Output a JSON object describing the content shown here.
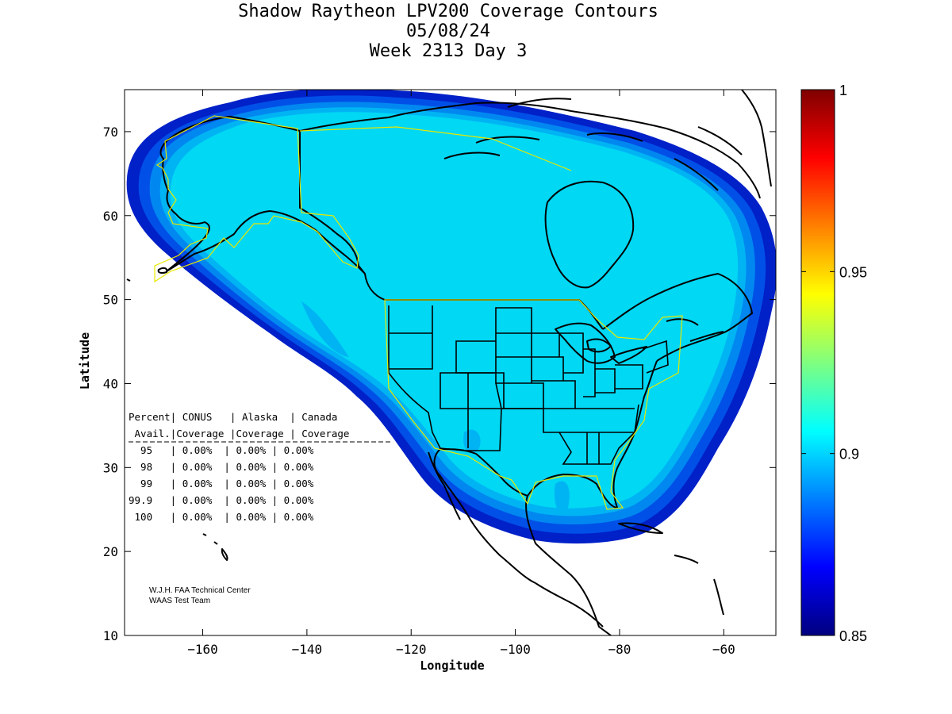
{
  "title": {
    "line1": "Shadow Raytheon LPV200 Coverage Contours",
    "line2": "05/08/24",
    "line3": "Week 2313 Day 3"
  },
  "axes": {
    "xlabel": "Longitude",
    "ylabel": "Latitude",
    "xlim": [
      -175,
      -50
    ],
    "ylim": [
      10,
      75
    ],
    "xticks": [
      -160,
      -140,
      -120,
      -100,
      -80,
      -60
    ],
    "yticks": [
      10,
      20,
      30,
      40,
      50,
      60,
      70
    ]
  },
  "colorbar": {
    "min": 0.85,
    "max": 1,
    "ticks": [
      "1",
      "0.95",
      "0.9",
      "0.85"
    ],
    "tick_values": [
      1,
      0.95,
      0.9,
      0.85
    ]
  },
  "table": {
    "header1": "Percent| CONUS   | Alaska  | Canada",
    "header2": " Avail.|Coverage |Coverage | Coverage",
    "rows": [
      "  95   | 0.00%  | 0.00% | 0.00%",
      "  98   | 0.00%  | 0.00% | 0.00%",
      "  99   | 0.00%  | 0.00% | 0.00%",
      "99.9   | 0.00%  | 0.00% | 0.00%",
      " 100   | 0.00%  | 0.00% | 0.00%"
    ]
  },
  "credit": {
    "line1": "W.J.H. FAA Technical Center",
    "line2": "WAAS Test Team"
  },
  "colors": {
    "coverage_main": "#00d8f4",
    "coverage_band1": "#00b4f4",
    "coverage_band2": "#0088f0",
    "coverage_band3": "#0050e8",
    "coverage_edge": "#0020c8",
    "service_boundary": "#e8e800",
    "coastline": "#000000"
  }
}
